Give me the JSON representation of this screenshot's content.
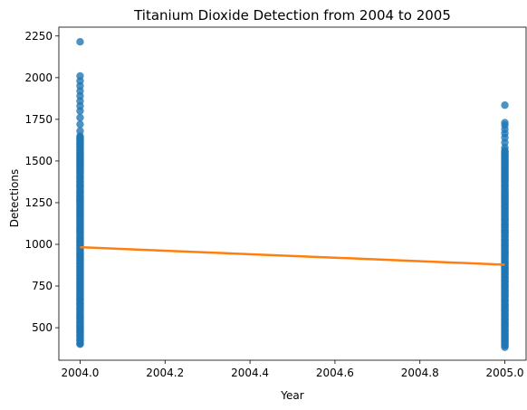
{
  "chart_data": {
    "type": "scatter",
    "title": "Titanium Dioxide Detection from 2004 to 2005",
    "xlabel": "Year",
    "ylabel": "Detections",
    "xlim": [
      2003.95,
      2005.05
    ],
    "ylim": [
      305,
      2303
    ],
    "x_ticks": [
      2004.0,
      2004.2,
      2004.4,
      2004.6,
      2004.8,
      2005.0
    ],
    "x_tick_labels": [
      "2004.0",
      "2004.2",
      "2004.4",
      "2004.6",
      "2004.8",
      "2005.0"
    ],
    "y_ticks": [
      500,
      750,
      1000,
      1250,
      1500,
      1750,
      2000,
      2250
    ],
    "y_tick_labels": [
      "500",
      "750",
      "1000",
      "1250",
      "1500",
      "1750",
      "2000",
      "2250"
    ],
    "grid": false,
    "series": [
      {
        "kind": "points",
        "color": "#1f77b4",
        "clusters": [
          {
            "x": 2004.0,
            "dense_range": [
              400,
              1650
            ],
            "outliers": [
              1680,
              1720,
              1760,
              1800,
              1830,
              1860,
              1890,
              1920,
              1950,
              1980,
              2010,
              2215
            ]
          },
          {
            "x": 2005.0,
            "dense_range": [
              385,
              1560
            ],
            "outliers": [
              1580,
              1610,
              1640,
              1665,
              1690,
              1715,
              1730,
              1835
            ]
          }
        ]
      },
      {
        "kind": "regression-line",
        "color": "#ff7f0e",
        "x": [
          2004.0,
          2005.0
        ],
        "y": [
          983,
          878
        ]
      }
    ]
  }
}
